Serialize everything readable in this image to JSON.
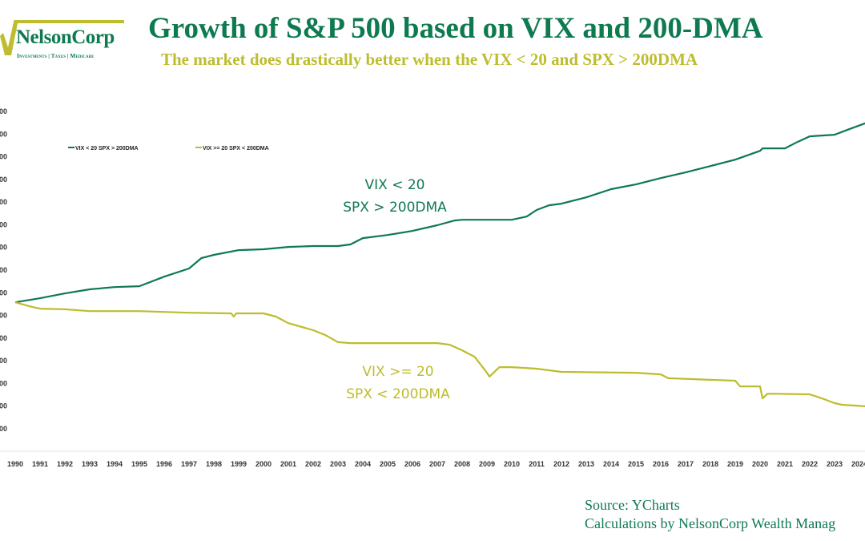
{
  "logo": {
    "name": "NelsonCorp",
    "tagline": "Investments | Taxes | Medicare"
  },
  "colors": {
    "green": "#0e7a50",
    "yellow": "#bdbd2e"
  },
  "source": {
    "line1": "Source: YCharts",
    "line2": "Calculations by NelsonCorp Wealth Manag"
  },
  "chart_data": {
    "type": "line",
    "title": "Growth of S&P 500 based on VIX and 200-DMA",
    "subtitle": "The market does drastically better when the VIX < 20 and SPX > 200DMA",
    "xlabel": "",
    "ylabel": "",
    "x_ticks": [
      "1990",
      "1991",
      "1992",
      "1993",
      "1994",
      "1995",
      "1996",
      "1997",
      "1998",
      "1999",
      "2000",
      "2001",
      "2002",
      "2003",
      "2004",
      "2005",
      "2006",
      "2007",
      "2008",
      "2009",
      "2010",
      "2011",
      "2012",
      "2013",
      "2014",
      "2015",
      "2016",
      "2017",
      "2018",
      "2019",
      "2020",
      "2021",
      "2022",
      "2023",
      "2024"
    ],
    "y_ticks": [
      "00",
      "00",
      "00",
      "00",
      "00",
      "00",
      "00",
      "00",
      "00",
      "00",
      "00",
      "00",
      "00",
      "00",
      "00"
    ],
    "ylim": [
      0,
      14
    ],
    "xlim": [
      1990,
      2024.3
    ],
    "grid": false,
    "legend_position": "top-left",
    "series": [
      {
        "name": "VIX < 20  SPX > 200DMA",
        "color": "#0e7a50",
        "x": [
          1990,
          1991,
          1992,
          1993,
          1994,
          1995,
          1996,
          1997,
          1997.5,
          1998,
          1999,
          2000,
          2001,
          2002,
          2003,
          2003.5,
          2004,
          2005,
          2006,
          2007,
          2007.7,
          2008,
          2009,
          2010,
          2010.6,
          2011,
          2011.5,
          2012,
          2013,
          2014,
          2015,
          2016,
          2017,
          2018,
          2019,
          2020,
          2020.1,
          2021,
          2021.5,
          2022,
          2023,
          2023.5,
          2024.3
        ],
        "y": [
          5.58,
          5.76,
          5.97,
          6.15,
          6.25,
          6.29,
          6.71,
          7.07,
          7.53,
          7.67,
          7.88,
          7.92,
          8.02,
          8.06,
          8.06,
          8.13,
          8.41,
          8.55,
          8.73,
          8.98,
          9.19,
          9.22,
          9.22,
          9.22,
          9.36,
          9.65,
          9.86,
          9.93,
          10.21,
          10.57,
          10.78,
          11.06,
          11.31,
          11.59,
          11.87,
          12.26,
          12.37,
          12.37,
          12.65,
          12.9,
          12.97,
          13.18,
          13.5
        ]
      },
      {
        "name": "VIX >= 20  SPX < 200DMA",
        "color": "#bdbd2e",
        "x": [
          1990,
          1990.7,
          1991,
          1992,
          1993,
          1995,
          1997,
          1998.7,
          1998.8,
          1998.9,
          2000,
          2000.5,
          2001,
          2002,
          2002.5,
          2003,
          2003.5,
          2007,
          2007.5,
          2008,
          2008.5,
          2009,
          2009.1,
          2009.5,
          2010,
          2011,
          2012,
          2015,
          2016,
          2016.3,
          2019,
          2019.2,
          2020,
          2020.1,
          2020.3,
          2022,
          2022.5,
          2023,
          2023.3,
          2024.3
        ],
        "y": [
          5.58,
          5.37,
          5.3,
          5.27,
          5.19,
          5.19,
          5.12,
          5.09,
          4.95,
          5.09,
          5.09,
          4.95,
          4.66,
          4.35,
          4.13,
          3.82,
          3.78,
          3.78,
          3.71,
          3.46,
          3.18,
          2.47,
          2.3,
          2.72,
          2.72,
          2.65,
          2.51,
          2.47,
          2.4,
          2.23,
          2.12,
          1.87,
          1.87,
          1.34,
          1.55,
          1.52,
          1.34,
          1.13,
          1.06,
          0.99
        ]
      }
    ],
    "annotations": [
      {
        "lines": [
          "VIX < 20",
          "SPX > 200DMA"
        ],
        "series": 0
      },
      {
        "lines": [
          "VIX >= 20",
          "SPX < 200DMA"
        ],
        "series": 1
      }
    ]
  }
}
